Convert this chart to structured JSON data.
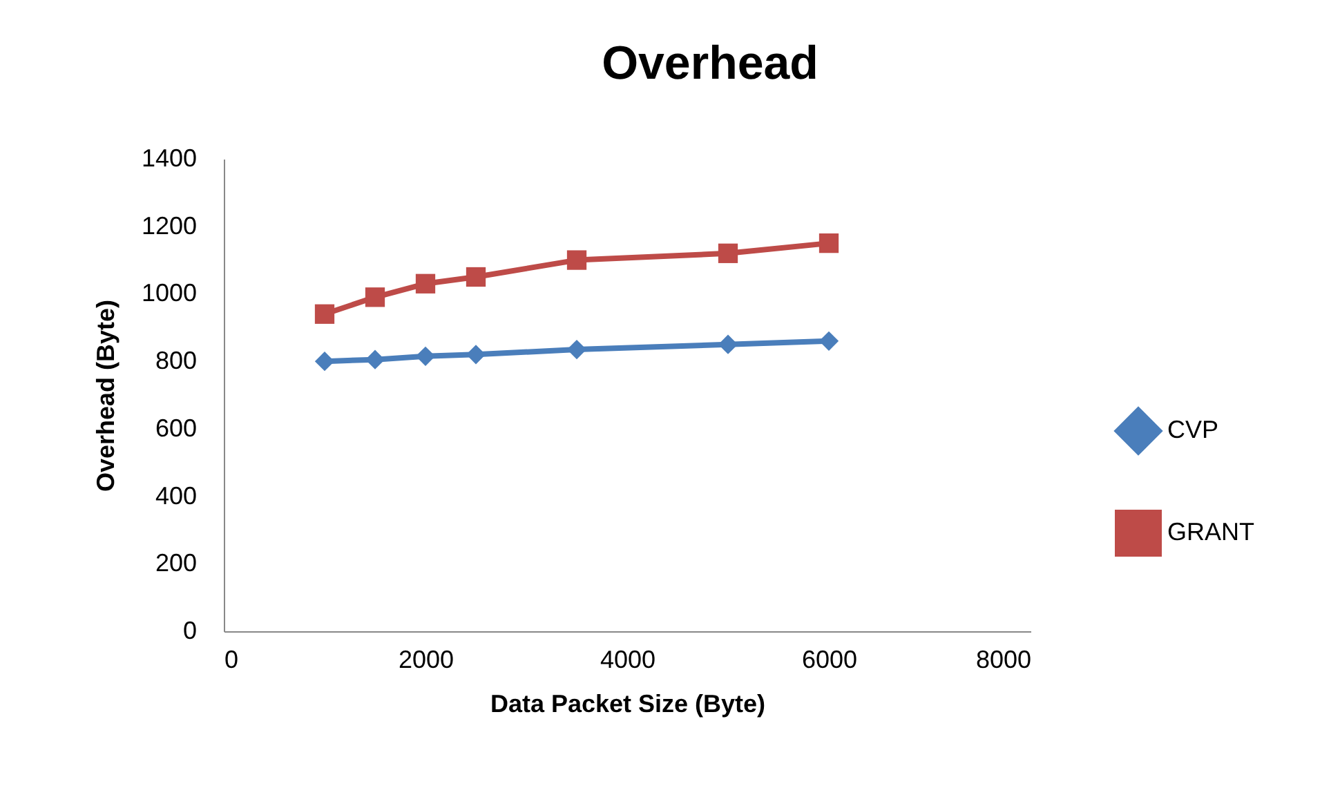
{
  "chart_data": {
    "type": "line",
    "title": "Overhead",
    "xlabel": "Data Packet Size (Byte)",
    "ylabel": "Overhead (Byte)",
    "x": [
      1000,
      1500,
      2000,
      2500,
      3500,
      5000,
      6000
    ],
    "series": [
      {
        "name": "CVP",
        "color": "#4a7ebb",
        "marker": "diamond",
        "values": [
          800,
          805,
          815,
          820,
          835,
          850,
          860
        ]
      },
      {
        "name": "GRANT",
        "color": "#be4b48",
        "marker": "square",
        "values": [
          940,
          990,
          1030,
          1050,
          1100,
          1120,
          1150
        ]
      }
    ],
    "xlim": [
      0,
      8000
    ],
    "xticks": [
      0,
      2000,
      4000,
      6000,
      8000
    ],
    "ylim": [
      0,
      1400
    ],
    "yticks": [
      0,
      200,
      400,
      600,
      800,
      1000,
      1200,
      1400
    ],
    "grid": false,
    "legend": "right",
    "line_style": "solid"
  }
}
